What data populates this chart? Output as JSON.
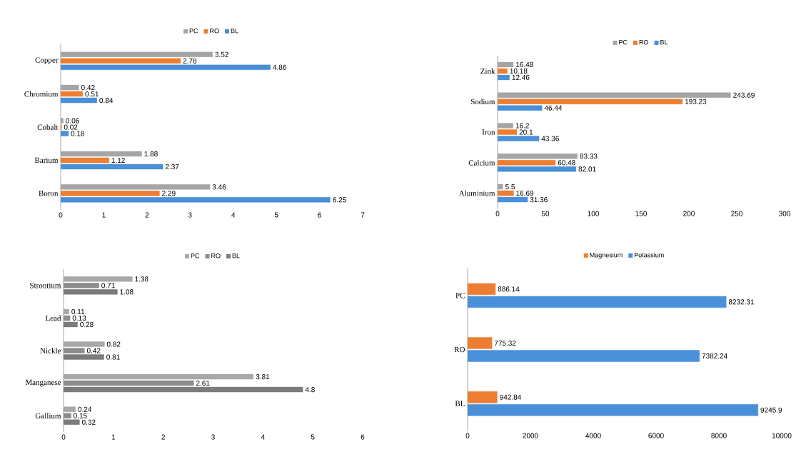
{
  "chart_data": [
    {
      "type": "bar",
      "orientation": "horizontal",
      "categories": [
        "Copper",
        "Chromium",
        "Cobalt",
        "Barium",
        "Boron"
      ],
      "series": [
        {
          "name": "PC",
          "color": "#a5a5a5",
          "values": [
            3.52,
            0.42,
            0.06,
            1.88,
            3.46
          ]
        },
        {
          "name": "RO",
          "color": "#ed7d31",
          "values": [
            2.78,
            0.51,
            0.02,
            1.12,
            2.29
          ]
        },
        {
          "name": "BL",
          "color": "#4a90d9",
          "values": [
            4.86,
            0.84,
            0.18,
            2.37,
            6.25
          ]
        }
      ],
      "xlim": [
        0,
        7
      ],
      "xticks": [
        0,
        1,
        2,
        3,
        4,
        5,
        6,
        7
      ],
      "data_labels": true,
      "legend": "top"
    },
    {
      "type": "bar",
      "orientation": "horizontal",
      "categories": [
        "Zink",
        "Sodium",
        "Iron",
        "Calcium",
        "Aluminium"
      ],
      "series": [
        {
          "name": "PC",
          "color": "#a5a5a5",
          "values": [
            16.48,
            243.69,
            16.2,
            83.33,
            5.5
          ]
        },
        {
          "name": "RO",
          "color": "#ed7d31",
          "values": [
            10.18,
            193.23,
            20.1,
            60.48,
            16.69
          ]
        },
        {
          "name": "BL",
          "color": "#4a90d9",
          "values": [
            12.46,
            46.44,
            43.36,
            82.01,
            31.36
          ]
        }
      ],
      "xlim": [
        0,
        300
      ],
      "xticks": [
        0,
        50,
        100,
        150,
        200,
        250,
        300
      ],
      "data_labels": true,
      "legend": "top"
    },
    {
      "type": "bar",
      "orientation": "horizontal",
      "categories": [
        "Strontium",
        "Lead",
        "Nickle",
        "Manganese",
        "Gallium"
      ],
      "series": [
        {
          "name": "PC",
          "color": "#a8a8a8",
          "values": [
            1.38,
            0.11,
            0.82,
            3.81,
            0.24
          ]
        },
        {
          "name": "RO",
          "color": "#8c8c8c",
          "values": [
            0.71,
            0.13,
            0.42,
            2.61,
            0.15
          ]
        },
        {
          "name": "BL",
          "color": "#7b7b7b",
          "values": [
            1.08,
            0.28,
            0.81,
            4.8,
            0.32
          ]
        }
      ],
      "xlim": [
        0,
        6
      ],
      "xticks": [
        0,
        1,
        2,
        3,
        4,
        5,
        6
      ],
      "data_labels": true,
      "legend": "top"
    },
    {
      "type": "bar",
      "orientation": "horizontal",
      "categories": [
        "PC",
        "RO",
        "BL"
      ],
      "series": [
        {
          "name": "Magnesium",
          "color": "#ed7d31",
          "values": [
            886.14,
            775.32,
            942.84
          ]
        },
        {
          "name": "Potassium",
          "color": "#4a90d9",
          "values": [
            8232.31,
            7382.24,
            9245.9
          ]
        }
      ],
      "xlim": [
        0,
        10000
      ],
      "xticks": [
        0,
        2000,
        4000,
        6000,
        8000,
        10000
      ],
      "data_labels": true,
      "legend": "top"
    }
  ]
}
